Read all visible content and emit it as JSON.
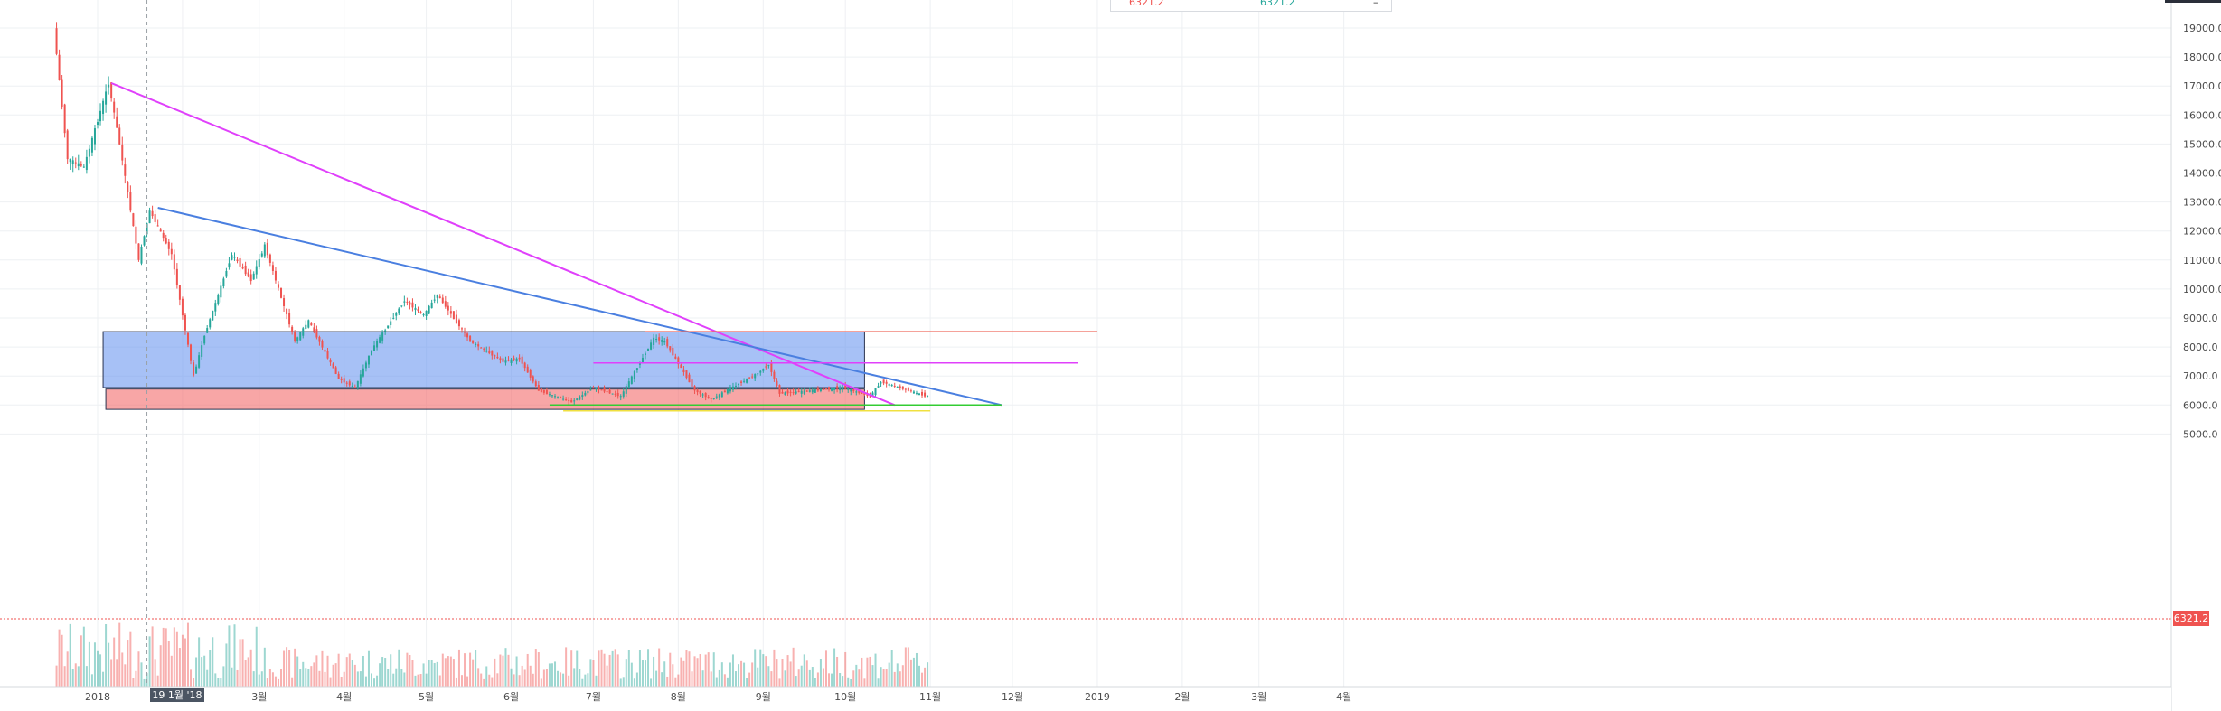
{
  "legend": {
    "value_left": "6321.2",
    "value_right": "6321.2",
    "collapse": "–"
  },
  "price_marker": {
    "label": "6321.2",
    "value": 6321.2
  },
  "crosshair": {
    "label": "19 1월 '18",
    "date": "2018-01-19"
  },
  "chart_data": {
    "type": "candlestick",
    "y_ticks": [
      "19000.0",
      "18000.0",
      "17000.0",
      "16000.0",
      "15000.0",
      "14000.0",
      "13000.0",
      "12000.0",
      "11000.0",
      "10000.0",
      "9000.0",
      "8000.0",
      "7000.0",
      "6000.0",
      "5000.0"
    ],
    "ylim": [
      5000,
      19500
    ],
    "x_ticks": [
      {
        "label": "2018",
        "date": "2018-01-01"
      },
      {
        "label": "2월",
        "date": "2018-02-01"
      },
      {
        "label": "3월",
        "date": "2018-03-01"
      },
      {
        "label": "4월",
        "date": "2018-04-01"
      },
      {
        "label": "5월",
        "date": "2018-05-01"
      },
      {
        "label": "6월",
        "date": "2018-06-01"
      },
      {
        "label": "7월",
        "date": "2018-07-01"
      },
      {
        "label": "8월",
        "date": "2018-08-01"
      },
      {
        "label": "9월",
        "date": "2018-09-01"
      },
      {
        "label": "10월",
        "date": "2018-10-01"
      },
      {
        "label": "11월",
        "date": "2018-11-01"
      },
      {
        "label": "12월",
        "date": "2018-12-01"
      },
      {
        "label": "2019",
        "date": "2019-01-01"
      },
      {
        "label": "2월",
        "date": "2019-02-01"
      },
      {
        "label": "3월",
        "date": "2019-03-01"
      },
      {
        "label": "4월",
        "date": "2019-04-01"
      }
    ],
    "price_path": [
      [
        "2017-12-17",
        19000
      ],
      [
        "2017-12-22",
        14500
      ],
      [
        "2017-12-28",
        14200
      ],
      [
        "2018-01-06",
        17100
      ],
      [
        "2018-01-10",
        15000
      ],
      [
        "2018-01-17",
        11000
      ],
      [
        "2018-01-21",
        12700
      ],
      [
        "2018-01-29",
        11200
      ],
      [
        "2018-02-06",
        7000
      ],
      [
        "2018-02-10",
        8400
      ],
      [
        "2018-02-20",
        11200
      ],
      [
        "2018-02-27",
        10300
      ],
      [
        "2018-03-04",
        11500
      ],
      [
        "2018-03-15",
        8200
      ],
      [
        "2018-03-20",
        8900
      ],
      [
        "2018-03-31",
        6900
      ],
      [
        "2018-04-06",
        6600
      ],
      [
        "2018-04-12",
        7900
      ],
      [
        "2018-04-24",
        9600
      ],
      [
        "2018-05-01",
        9100
      ],
      [
        "2018-05-06",
        9800
      ],
      [
        "2018-05-18",
        8200
      ],
      [
        "2018-05-30",
        7500
      ],
      [
        "2018-06-05",
        7600
      ],
      [
        "2018-06-12",
        6500
      ],
      [
        "2018-06-24",
        6100
      ],
      [
        "2018-07-02",
        6600
      ],
      [
        "2018-07-12",
        6300
      ],
      [
        "2018-07-24",
        8300
      ],
      [
        "2018-07-28",
        8200
      ],
      [
        "2018-08-08",
        6500
      ],
      [
        "2018-08-14",
        6200
      ],
      [
        "2018-08-31",
        7100
      ],
      [
        "2018-09-04",
        7400
      ],
      [
        "2018-09-08",
        6400
      ],
      [
        "2018-09-20",
        6500
      ],
      [
        "2018-10-01",
        6600
      ],
      [
        "2018-10-11",
        6300
      ],
      [
        "2018-10-15",
        6800
      ],
      [
        "2018-10-31",
        6321.2
      ]
    ],
    "trendlines": [
      {
        "name": "magenta-diagonal",
        "color": "#e040fb",
        "from": [
          "2018-01-06",
          17100
        ],
        "to": [
          "2018-10-19",
          6000
        ]
      },
      {
        "name": "blue-diagonal",
        "color": "#4a7fe0",
        "from": [
          "2018-01-23",
          12800
        ],
        "to": [
          "2018-11-27",
          6000
        ]
      },
      {
        "name": "green-support",
        "color": "#33cc33",
        "from": [
          "2018-06-15",
          6000
        ],
        "to": [
          "2018-11-27",
          6000
        ]
      },
      {
        "name": "yellow-support",
        "color": "#f0e040",
        "from": [
          "2018-06-20",
          5800
        ],
        "to": [
          "2018-11-01",
          5800
        ]
      },
      {
        "name": "magenta-level",
        "color": "#e040fb",
        "from": [
          "2018-07-01",
          7450
        ],
        "to": [
          "2018-12-25",
          7450
        ]
      },
      {
        "name": "red-level",
        "color": "#ef6b5e",
        "from": [
          "2018-07-20",
          8530
        ],
        "to": [
          "2019-01-01",
          8530
        ]
      }
    ],
    "zones": [
      {
        "name": "blue-range",
        "color": "#6d98f0",
        "from_date": "2018-01-03",
        "to_date": "2018-10-08",
        "low": 6600,
        "high": 8530
      },
      {
        "name": "red-range",
        "color": "#f36b6b",
        "from_date": "2018-01-04",
        "to_date": "2018-10-08",
        "low": 5850,
        "high": 6550
      }
    ],
    "colors": {
      "up": "#26a69a",
      "down": "#ef5350",
      "grid": "#eef0f3"
    },
    "grid": true
  }
}
